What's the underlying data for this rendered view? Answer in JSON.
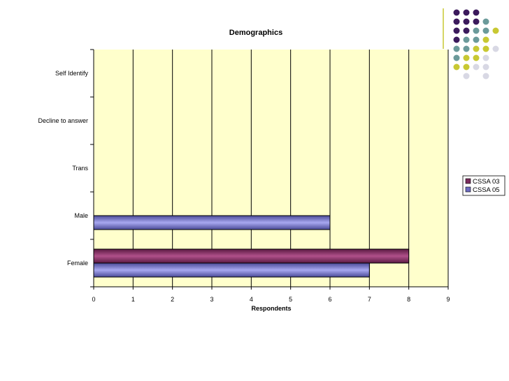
{
  "chart_data": {
    "type": "bar",
    "orientation": "horizontal",
    "title": "Demographics",
    "xlabel": "Respondents",
    "ylabel": "",
    "categories": [
      "Female",
      "Male",
      "Trans",
      "Decline to answer",
      "Self Identify"
    ],
    "series": [
      {
        "name": "CSSA 03",
        "values": [
          8,
          0,
          0,
          0,
          0
        ]
      },
      {
        "name": "CSSA 05",
        "values": [
          7,
          6,
          0,
          0,
          0
        ]
      }
    ],
    "xlim": [
      0,
      9
    ],
    "xticks": [
      0,
      1,
      2,
      3,
      4,
      5,
      6,
      7,
      8,
      9
    ],
    "grid": true,
    "legend_position": "right",
    "colors": {
      "plot_background": "#ffffcc",
      "CSSA 03": "#7a2c5c",
      "CSSA 05": "#6d6bc0"
    }
  },
  "decoration": {
    "dot_colors": [
      "#3b1a5c",
      "#6b9a9a",
      "#c8c832",
      "#d8d8e4"
    ]
  }
}
